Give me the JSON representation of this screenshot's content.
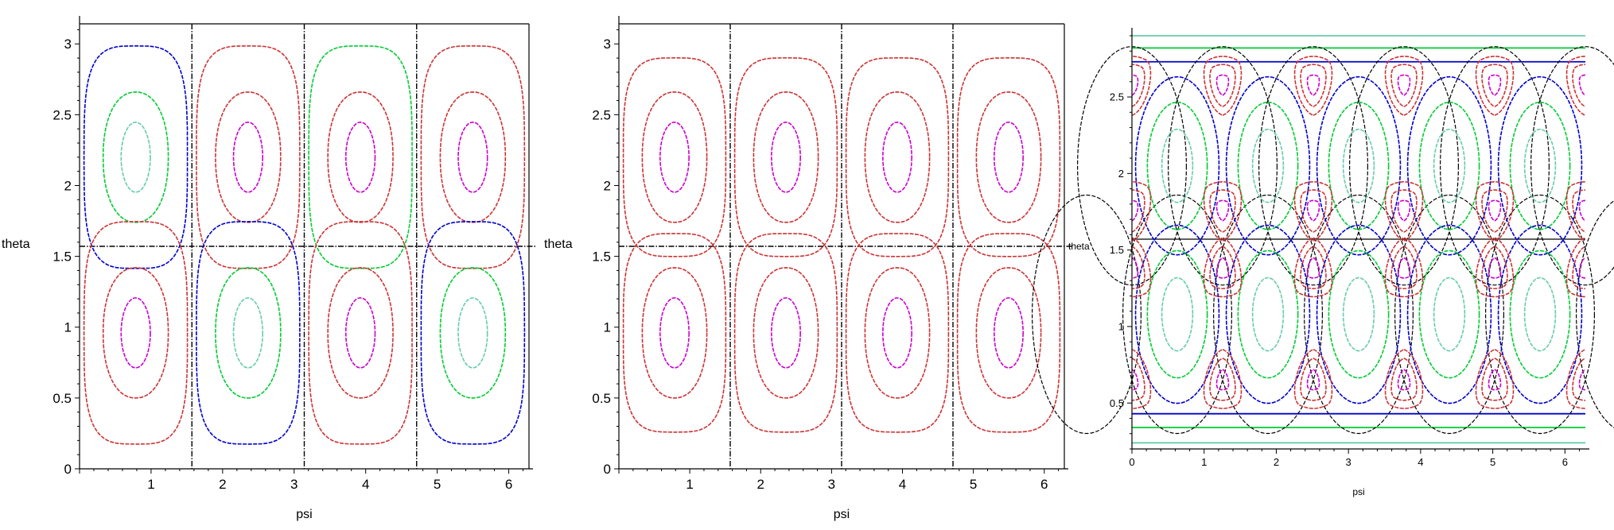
{
  "chart_data": [
    {
      "type": "contour",
      "title": "",
      "xlabel": "psi",
      "ylabel": "theta",
      "xlim": [
        0,
        6.283
      ],
      "ylim": [
        0,
        3.1416
      ],
      "xticks": [
        "1",
        "2",
        "3",
        "4",
        "5",
        "6"
      ],
      "yticks": [
        "0",
        "0.5",
        "1",
        "1.5",
        "2",
        "2.5",
        "3"
      ],
      "cells_x": 4,
      "cells_y": 2,
      "cell_level_colors": [
        [
          "#0000cc",
          "#cc3333",
          "#00cc33",
          "#cc3333"
        ],
        [
          "#cc3333",
          "#0000cc",
          "#cc3333",
          "#0000cc"
        ],
        [
          "#cc3333",
          "#cc3333",
          "#cc3333",
          "#cc3333"
        ]
      ],
      "inner_colors": {
        "blue": [
          "#00cc33",
          "#66ccaa"
        ],
        "red": [
          "#cc3333",
          "#cc00cc"
        ]
      },
      "separatrix": "dash-dot black"
    },
    {
      "type": "contour",
      "title": "",
      "xlabel": "psi",
      "ylabel": "theta",
      "xlim": [
        0,
        6.283
      ],
      "ylim": [
        0,
        3.1416
      ],
      "xticks": [
        "1",
        "2",
        "3",
        "4",
        "5",
        "6"
      ],
      "yticks": [
        "0",
        "0.5",
        "1",
        "1.5",
        "2",
        "2.5",
        "3"
      ],
      "cells_x": 4,
      "cells_y": 2,
      "contour_colors": [
        "#cc3333",
        "#cc3333",
        "#cc00cc"
      ],
      "separatrix": "dash-dot black"
    },
    {
      "type": "contour",
      "title": "",
      "xlabel": "psi",
      "ylabel": "theta",
      "xlim": [
        0,
        6.283
      ],
      "ylim": [
        0.2,
        2.9
      ],
      "xticks": [
        "0",
        "1",
        "2",
        "3",
        "4",
        "5",
        "6"
      ],
      "yticks": [
        "0.5",
        "1",
        "1.5",
        "2",
        "2.5"
      ],
      "large_cells_per_row": 5,
      "large_cell_colors": [
        "#0000cc",
        "#00cc33",
        "#66ccaa"
      ],
      "small_cell_colors": [
        "#cc3333",
        "#cc3333",
        "#cc00cc"
      ],
      "band_lines": [
        {
          "theta": 2.9,
          "color": "#66ccaa"
        },
        {
          "theta": 2.82,
          "color": "#00cc33"
        },
        {
          "theta": 2.73,
          "color": "#0000cc"
        },
        {
          "theta": 0.43,
          "color": "#0000cc"
        },
        {
          "theta": 0.34,
          "color": "#00cc33"
        },
        {
          "theta": 0.24,
          "color": "#66ccaa"
        }
      ],
      "separatrix": "dash black"
    }
  ]
}
